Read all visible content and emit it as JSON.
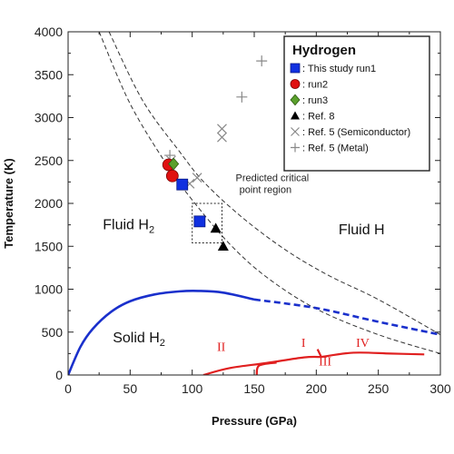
{
  "chart_data": {
    "type": "scatter",
    "xlabel": "Pressure (GPa)",
    "ylabel": "Temperature (K)",
    "xlim": [
      0,
      300
    ],
    "ylim": [
      0,
      4000
    ],
    "x_ticks": [
      "0",
      "50",
      "100",
      "150",
      "200",
      "250",
      "300"
    ],
    "y_ticks": [
      "0",
      "500",
      "1000",
      "1500",
      "2000",
      "2500",
      "3000",
      "3500",
      "4000"
    ],
    "grid": false,
    "legend": {
      "title": "Hydrogen",
      "placement": "top-right",
      "entries": [
        {
          "label": ": This study run1",
          "marker": "square",
          "color": "#1030e0"
        },
        {
          "label": ": run2",
          "marker": "circle",
          "color": "#e01010"
        },
        {
          "label": ": run3",
          "marker": "diamond",
          "color": "#5aa02c"
        },
        {
          "label": ": Ref. 8",
          "marker": "triangle",
          "color": "#000000"
        },
        {
          "label": ": Ref. 5 (Semiconductor)",
          "marker": "x",
          "color": "#888888"
        },
        {
          "label": ": Ref. 5 (Metal)",
          "marker": "plus",
          "color": "#888888"
        }
      ]
    },
    "series": [
      {
        "name": ": This study run1",
        "marker": "square",
        "color": "#1030e0",
        "points": [
          [
            92,
            2220
          ],
          [
            106,
            1790
          ]
        ]
      },
      {
        "name": ": run2",
        "marker": "circle",
        "color": "#e01010",
        "points": [
          [
            81,
            2450
          ],
          [
            84,
            2320
          ]
        ]
      },
      {
        "name": ": run3",
        "marker": "diamond",
        "color": "#5aa02c",
        "points": [
          [
            85,
            2460
          ]
        ]
      },
      {
        "name": ": Ref. 8",
        "marker": "triangle",
        "color": "#000000",
        "points": [
          [
            119,
            1710
          ],
          [
            125,
            1500
          ]
        ]
      },
      {
        "name": ": Ref. 5 (Semiconductor)",
        "marker": "x",
        "color": "#888888",
        "points": [
          [
            83,
            2500
          ],
          [
            98,
            2230
          ],
          [
            104,
            2300
          ],
          [
            124,
            2870
          ],
          [
            124,
            2770
          ]
        ]
      },
      {
        "name": ": Ref. 5 (Metal)",
        "marker": "plus",
        "color": "#888888",
        "points": [
          [
            82,
            2560
          ],
          [
            140,
            3240
          ],
          [
            156,
            3660
          ]
        ]
      }
    ],
    "curves": [
      {
        "id": "dashed-upper",
        "style": "dashed",
        "color": "#333333",
        "points": [
          [
            33,
            4000
          ],
          [
            60,
            3200
          ],
          [
            90,
            2600
          ],
          [
            110,
            2240
          ],
          [
            140,
            1840
          ],
          [
            175,
            1460
          ],
          [
            210,
            1160
          ],
          [
            250,
            880
          ],
          [
            300,
            470
          ]
        ]
      },
      {
        "id": "dashed-lower",
        "style": "dashed",
        "color": "#333333",
        "points": [
          [
            25,
            4000
          ],
          [
            50,
            3160
          ],
          [
            80,
            2440
          ],
          [
            100,
            2040
          ],
          [
            130,
            1530
          ],
          [
            160,
            1140
          ],
          [
            200,
            770
          ],
          [
            250,
            470
          ],
          [
            300,
            250
          ]
        ]
      },
      {
        "id": "melting-solid",
        "style": "solid",
        "color": "#1a30cc",
        "points": [
          [
            0,
            0
          ],
          [
            10,
            330
          ],
          [
            20,
            540
          ],
          [
            35,
            740
          ],
          [
            50,
            860
          ],
          [
            70,
            940
          ],
          [
            90,
            975
          ],
          [
            105,
            980
          ],
          [
            125,
            960
          ],
          [
            150,
            880
          ]
        ]
      },
      {
        "id": "melting-extrapolated",
        "style": "dashed",
        "color": "#1a30cc",
        "points": [
          [
            150,
            880
          ],
          [
            200,
            780
          ],
          [
            250,
            620
          ],
          [
            300,
            470
          ]
        ]
      },
      {
        "id": "phase-I-II",
        "style": "solid",
        "color": "#e02020",
        "points": [
          [
            109,
            0
          ],
          [
            130,
            80
          ],
          [
            160,
            140
          ],
          [
            190,
            205
          ],
          [
            204,
            210
          ]
        ]
      },
      {
        "id": "phase-II-III",
        "style": "solid",
        "color": "#e02020",
        "points": [
          [
            152,
            0
          ],
          [
            154,
            110
          ],
          [
            168,
            145
          ]
        ]
      },
      {
        "id": "phase-I-III",
        "style": "solid",
        "color": "#e02020",
        "points": [
          [
            204,
            210
          ],
          [
            201,
            300
          ]
        ]
      },
      {
        "id": "phase-I-IV",
        "style": "solid",
        "color": "#e02020",
        "points": [
          [
            204,
            210
          ],
          [
            230,
            260
          ],
          [
            260,
            250
          ],
          [
            287,
            240
          ]
        ]
      }
    ],
    "annotations": [
      {
        "text": "Fluid H",
        "sub": "2",
        "x": 28,
        "y": 1700
      },
      {
        "text": "Fluid H",
        "sub": "",
        "x": 218,
        "y": 1640
      },
      {
        "text": "Solid H",
        "sub": "2",
        "x": 36,
        "y": 380
      },
      {
        "text": "Predicted critical",
        "x": 135,
        "y": 2260
      },
      {
        "text": "point region",
        "x": 138,
        "y": 2120
      },
      {
        "text": "I",
        "x": 188,
        "y": 330,
        "phase": true
      },
      {
        "text": "II",
        "x": 120,
        "y": 280,
        "phase": true
      },
      {
        "text": "III",
        "x": 202,
        "y": 110,
        "phase": true
      },
      {
        "text": "IV",
        "x": 232,
        "y": 330,
        "phase": true
      }
    ],
    "predicted_region": {
      "x": [
        100,
        124
      ],
      "y": [
        1540,
        2000
      ]
    }
  }
}
